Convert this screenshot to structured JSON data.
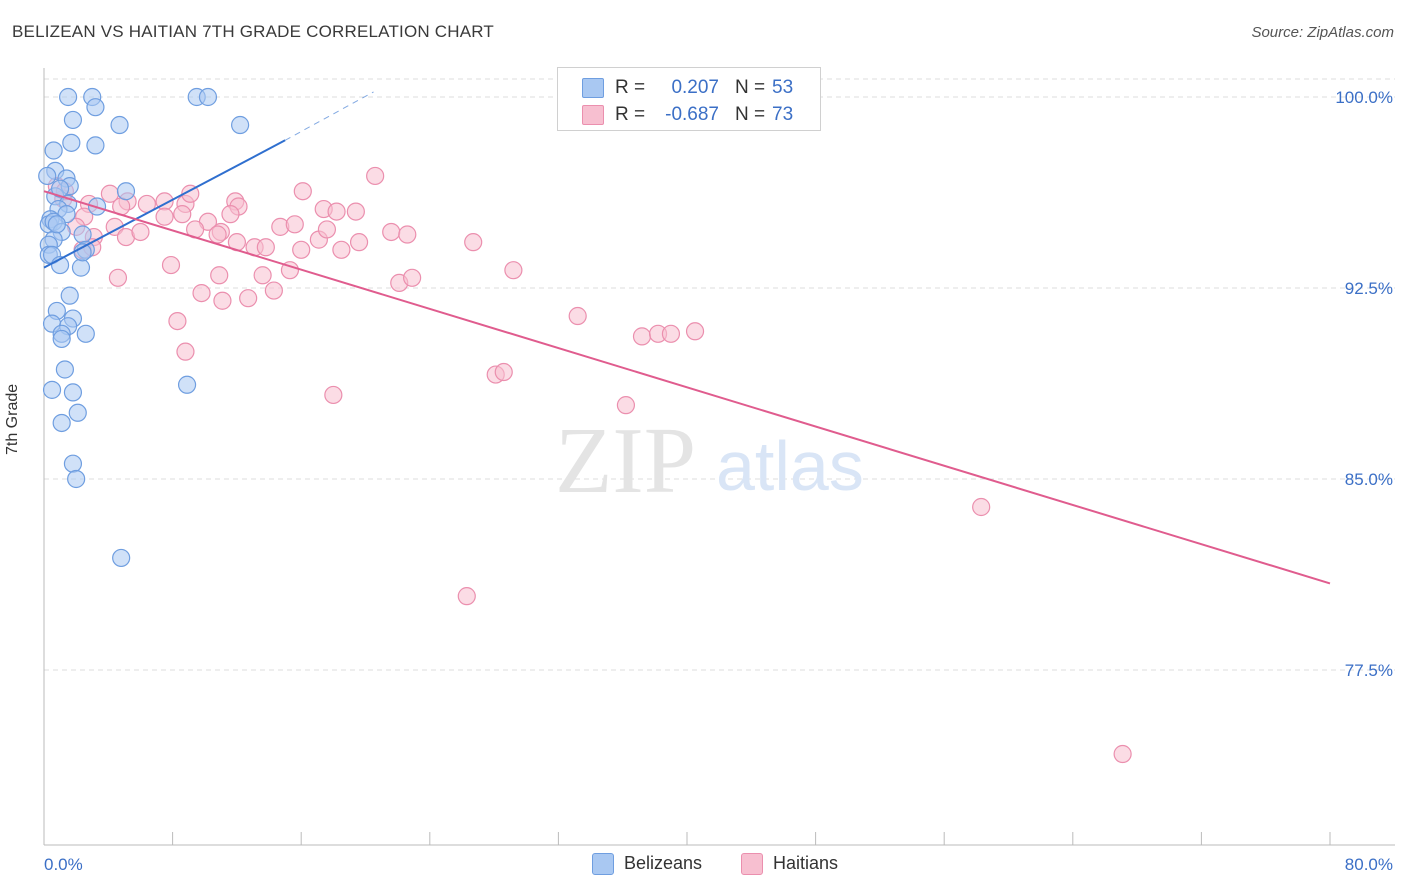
{
  "title": "BELIZEAN VS HAITIAN 7TH GRADE CORRELATION CHART",
  "source": "Source: ZipAtlas.com",
  "watermark": {
    "zip": "ZIP",
    "atlas": "atlas"
  },
  "legend_top": [
    {
      "r_label": "R =",
      "r_value": "0.207",
      "n_label": "N =",
      "n_value": "53"
    },
    {
      "r_label": "R =",
      "r_value": "-0.687",
      "n_label": "N =",
      "n_value": "73"
    }
  ],
  "legend_bottom": [
    "Belizeans",
    "Haitians"
  ],
  "colors": {
    "blue_fill": "#a9c8f2",
    "blue_stroke": "#6f9ee0",
    "blue_line": "#2f6fcf",
    "pink_fill": "#f7bfd0",
    "pink_stroke": "#eb8fae",
    "pink_line": "#e05c8e",
    "tick_text": "#3b6fc6",
    "grid": "#dddddd"
  },
  "chart_data": {
    "type": "scatter",
    "title": "BELIZEAN VS HAITIAN 7TH GRADE CORRELATION CHART",
    "xlabel": "",
    "ylabel": "7th Grade",
    "xlim": [
      0,
      80
    ],
    "ylim": [
      71.0,
      101.5
    ],
    "x_tick_labels": [
      "0.0%",
      "80.0%"
    ],
    "y_ticks": [
      77.5,
      85.0,
      92.5,
      100.0
    ],
    "y_tick_labels": [
      "77.5%",
      "85.0%",
      "92.5%",
      "100.0%"
    ],
    "grid": true,
    "series": [
      {
        "name": "Belizeans",
        "r": 0.207,
        "n": 53,
        "trend": {
          "x": [
            0,
            15
          ],
          "y": [
            93.3,
            98.3
          ],
          "dashed_to": [
            20.5,
            100.2
          ]
        },
        "points": [
          [
            1.5,
            100.0
          ],
          [
            3.0,
            100.0
          ],
          [
            9.5,
            100.0
          ],
          [
            10.2,
            100.0
          ],
          [
            3.2,
            99.6
          ],
          [
            1.8,
            99.1
          ],
          [
            4.7,
            98.9
          ],
          [
            12.2,
            98.9
          ],
          [
            1.7,
            98.2
          ],
          [
            3.2,
            98.1
          ],
          [
            0.6,
            97.9
          ],
          [
            0.7,
            97.1
          ],
          [
            1.4,
            96.8
          ],
          [
            5.1,
            96.3
          ],
          [
            1.6,
            96.5
          ],
          [
            0.7,
            96.1
          ],
          [
            1.0,
            96.4
          ],
          [
            1.5,
            95.8
          ],
          [
            3.3,
            95.7
          ],
          [
            0.9,
            95.6
          ],
          [
            0.4,
            95.2
          ],
          [
            1.4,
            95.4
          ],
          [
            0.3,
            95.0
          ],
          [
            0.6,
            95.1
          ],
          [
            1.1,
            94.7
          ],
          [
            2.4,
            94.6
          ],
          [
            0.6,
            94.4
          ],
          [
            0.3,
            94.2
          ],
          [
            2.6,
            94.0
          ],
          [
            0.3,
            93.8
          ],
          [
            0.5,
            93.8
          ],
          [
            1.0,
            93.4
          ],
          [
            2.3,
            93.3
          ],
          [
            1.6,
            92.2
          ],
          [
            0.8,
            91.6
          ],
          [
            1.8,
            91.3
          ],
          [
            0.5,
            91.1
          ],
          [
            1.5,
            91.0
          ],
          [
            2.6,
            90.7
          ],
          [
            1.1,
            90.7
          ],
          [
            1.1,
            90.5
          ],
          [
            1.3,
            89.3
          ],
          [
            8.9,
            88.7
          ],
          [
            0.5,
            88.5
          ],
          [
            1.8,
            88.4
          ],
          [
            2.1,
            87.6
          ],
          [
            1.1,
            87.2
          ],
          [
            1.8,
            85.6
          ],
          [
            2.0,
            85.0
          ],
          [
            4.8,
            81.9
          ],
          [
            2.4,
            93.9
          ],
          [
            0.8,
            95.0
          ],
          [
            0.2,
            96.9
          ]
        ]
      },
      {
        "name": "Haitians",
        "r": -0.687,
        "n": 73,
        "trend": {
          "x": [
            0,
            80
          ],
          "y": [
            96.3,
            80.9
          ]
        },
        "points": [
          [
            32.5,
            100.1
          ],
          [
            0.8,
            96.5
          ],
          [
            1.2,
            96.0
          ],
          [
            2.8,
            95.8
          ],
          [
            5.2,
            95.9
          ],
          [
            6.4,
            95.8
          ],
          [
            7.5,
            95.9
          ],
          [
            8.8,
            95.8
          ],
          [
            11.9,
            95.9
          ],
          [
            12.1,
            95.7
          ],
          [
            2.5,
            95.3
          ],
          [
            4.8,
            95.7
          ],
          [
            7.5,
            95.3
          ],
          [
            8.6,
            95.4
          ],
          [
            10.2,
            95.1
          ],
          [
            11.6,
            95.4
          ],
          [
            17.4,
            95.6
          ],
          [
            18.2,
            95.5
          ],
          [
            19.4,
            95.5
          ],
          [
            20.6,
            96.9
          ],
          [
            16.1,
            96.3
          ],
          [
            4.1,
            96.2
          ],
          [
            9.1,
            96.2
          ],
          [
            1.3,
            96.3
          ],
          [
            2.0,
            94.9
          ],
          [
            3.1,
            94.5
          ],
          [
            4.4,
            94.9
          ],
          [
            5.1,
            94.5
          ],
          [
            6.0,
            94.7
          ],
          [
            9.4,
            94.8
          ],
          [
            11.0,
            94.7
          ],
          [
            14.7,
            94.9
          ],
          [
            15.6,
            95.0
          ],
          [
            17.1,
            94.4
          ],
          [
            17.6,
            94.8
          ],
          [
            21.6,
            94.7
          ],
          [
            22.6,
            94.6
          ],
          [
            10.8,
            94.6
          ],
          [
            12.0,
            94.3
          ],
          [
            13.1,
            94.1
          ],
          [
            13.8,
            94.1
          ],
          [
            16.0,
            94.0
          ],
          [
            18.5,
            94.0
          ],
          [
            19.6,
            94.3
          ],
          [
            26.7,
            94.3
          ],
          [
            2.4,
            94.0
          ],
          [
            3.0,
            94.1
          ],
          [
            7.9,
            93.4
          ],
          [
            4.6,
            92.9
          ],
          [
            13.6,
            93.0
          ],
          [
            15.3,
            93.2
          ],
          [
            22.1,
            92.7
          ],
          [
            22.9,
            92.9
          ],
          [
            29.2,
            93.2
          ],
          [
            9.8,
            92.3
          ],
          [
            10.9,
            93.0
          ],
          [
            11.1,
            92.0
          ],
          [
            12.7,
            92.1
          ],
          [
            14.3,
            92.4
          ],
          [
            8.3,
            91.2
          ],
          [
            33.2,
            91.4
          ],
          [
            37.2,
            90.6
          ],
          [
            38.2,
            90.7
          ],
          [
            39.0,
            90.7
          ],
          [
            40.5,
            90.8
          ],
          [
            8.8,
            90.0
          ],
          [
            28.1,
            89.1
          ],
          [
            28.6,
            89.2
          ],
          [
            18.0,
            88.3
          ],
          [
            36.2,
            87.9
          ],
          [
            58.3,
            83.9
          ],
          [
            26.3,
            80.4
          ],
          [
            67.1,
            74.2
          ]
        ]
      }
    ]
  }
}
